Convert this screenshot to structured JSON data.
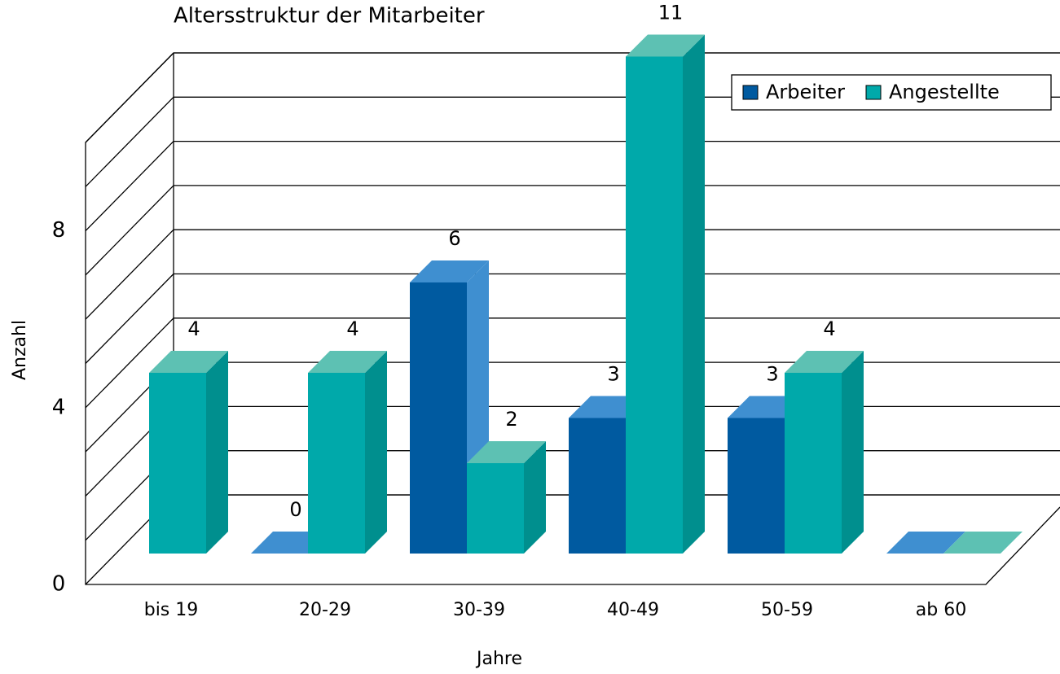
{
  "chart_data": {
    "type": "bar3d",
    "title": "Altersstruktur der Mitarbeiter",
    "x_label": "Jahre",
    "y_label": "Anzahl",
    "categories": [
      "bis 19",
      "20-29",
      "30-39",
      "40-49",
      "50-59",
      "ab 60"
    ],
    "series": [
      {
        "name": "Arbeiter",
        "color": "#005aa0",
        "top_color": "#3f8fd0",
        "side_color": "#3f8fd0",
        "values": [
          null,
          0,
          6,
          3,
          3,
          0
        ],
        "value_labels": [
          null,
          "0",
          "6",
          "3",
          "3",
          null
        ]
      },
      {
        "name": "Angestellte",
        "color": "#00a9aa",
        "top_color": "#5dc1b3",
        "side_color": "#008f8e",
        "values": [
          4,
          4,
          2,
          11,
          4,
          0
        ],
        "value_labels": [
          "4",
          "4",
          "2",
          "11",
          "4",
          null
        ]
      }
    ],
    "ylim": [
      0,
      10
    ],
    "yticks": [
      0,
      4,
      8
    ],
    "minor_yticks": [
      1,
      2,
      3,
      5,
      6,
      7,
      9,
      10
    ],
    "grid": true,
    "legend": "top-right"
  }
}
